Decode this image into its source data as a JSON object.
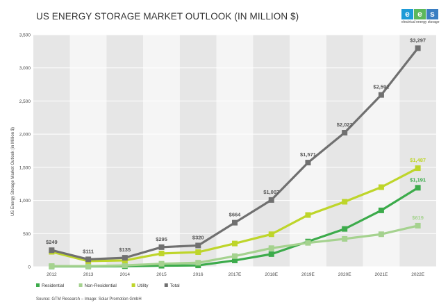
{
  "title": "US ENERGY STORAGE MARKET OUTLOOK (IN MILLION $)",
  "logo": {
    "text": "ees",
    "subtitle": "electrical energy storage"
  },
  "source": "Source: GTM Research – Image: Solar Promotion GmbH",
  "chart_data": {
    "type": "line",
    "title": "US ENERGY STORAGE MARKET OUTLOOK (IN MILLION $)",
    "xlabel": "",
    "ylabel": "US Energy Storage Market Outlook (in Million $)",
    "categories": [
      "2012",
      "2013",
      "2014",
      "2015",
      "2016",
      "2017E",
      "2018E",
      "2019E",
      "2020E",
      "2021E",
      "2022E"
    ],
    "ylim": [
      0,
      3500
    ],
    "yticks": [
      0,
      500,
      1000,
      1500,
      2000,
      2500,
      3000,
      3500
    ],
    "ytick_labels": [
      "0",
      "500",
      "1,000",
      "1,500",
      "2,000",
      "2,500",
      "3,000",
      "3,500"
    ],
    "grid": true,
    "legend": "bottom-left",
    "series": [
      {
        "name": "Residential",
        "color": "#3cab4b",
        "values": [
          5,
          5,
          8,
          15,
          20,
          95,
          190,
          380,
          570,
          850,
          1191
        ],
        "labels": [
          "",
          "",
          "",
          "",
          "",
          "",
          "",
          "",
          "",
          "",
          "$1,191"
        ]
      },
      {
        "name": "Non-Residential",
        "color": "#a5d28f",
        "values": [
          10,
          10,
          20,
          45,
          60,
          160,
          280,
          360,
          420,
          490,
          619
        ],
        "labels": [
          "",
          "",
          "",
          "",
          "",
          "",
          "",
          "",
          "",
          "",
          "$619"
        ]
      },
      {
        "name": "Utility",
        "color": "#bed52a",
        "values": [
          225,
          85,
          95,
          200,
          220,
          350,
          490,
          780,
          980,
          1200,
          1487
        ],
        "labels": [
          "",
          "",
          "",
          "",
          "",
          "",
          "",
          "",
          "",
          "",
          "$1,487"
        ]
      },
      {
        "name": "Total",
        "color": "#707070",
        "values": [
          249,
          111,
          135,
          295,
          320,
          664,
          1007,
          1571,
          2022,
          2592,
          3297
        ],
        "labels": [
          "$249",
          "$111",
          "$135",
          "$295",
          "$320",
          "$664",
          "$1,007",
          "$1,571",
          "$2,022",
          "$2,592",
          "$3,297"
        ]
      }
    ]
  }
}
